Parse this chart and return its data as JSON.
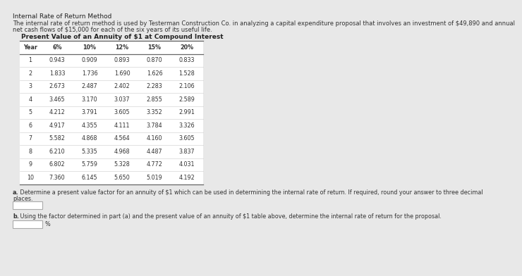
{
  "title": "Internal Rate of Return Method",
  "intro_line1": "The internal rate of return method is used by Testerman Construction Co. in analyzing a capital expenditure proposal that involves an investment of $49,890 and annual",
  "intro_line2": "net cash flows of $15,000 for each of the six years of its useful life.",
  "table_title": "Present Value of an Annuity of $1 at Compound Interest",
  "headers": [
    "Year",
    "6%",
    "10%",
    "12%",
    "15%",
    "20%"
  ],
  "rows": [
    [
      1,
      0.943,
      0.909,
      0.893,
      0.87,
      0.833
    ],
    [
      2,
      1.833,
      1.736,
      1.69,
      1.626,
      1.528
    ],
    [
      3,
      2.673,
      2.487,
      2.402,
      2.283,
      2.106
    ],
    [
      4,
      3.465,
      3.17,
      3.037,
      2.855,
      2.589
    ],
    [
      5,
      4.212,
      3.791,
      3.605,
      3.352,
      2.991
    ],
    [
      6,
      4.917,
      4.355,
      4.111,
      3.784,
      3.326
    ],
    [
      7,
      5.582,
      4.868,
      4.564,
      4.16,
      3.605
    ],
    [
      8,
      6.21,
      5.335,
      4.968,
      4.487,
      3.837
    ],
    [
      9,
      6.802,
      5.759,
      5.328,
      4.772,
      4.031
    ],
    [
      10,
      7.36,
      6.145,
      5.65,
      5.019,
      4.192
    ]
  ],
  "question_a_bold": "a.",
  "question_a_text": " Determine a present value factor for an annuity of $1 which can be used in determining the internal rate of return. If required, round your answer to three decimal",
  "question_a_line2": "places.",
  "question_b_bold": "b.",
  "question_b_text": " Using the factor determined in part (a) and the present value of an annuity of $1 table above, determine the internal rate of return for the proposal.",
  "bg_color": "#e8e8e8",
  "table_bg": "#ffffff",
  "table_border_color": "#999999",
  "text_color": "#333333",
  "title_color": "#222222",
  "font_size_title": 6.5,
  "font_size_intro": 6.0,
  "font_size_table_title": 6.5,
  "font_size_table": 5.8,
  "font_size_question": 5.8,
  "table_indent": 18,
  "table_title_indent": 20
}
